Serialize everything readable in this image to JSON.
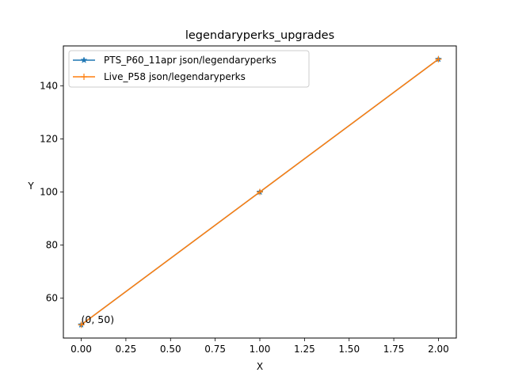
{
  "chart_data": {
    "type": "line",
    "title": "legendaryperks_upgrades",
    "xlabel": "X",
    "ylabel": "Y",
    "x": [
      0,
      1,
      2
    ],
    "xlim": [
      -0.1,
      2.1
    ],
    "ylim": [
      45,
      155
    ],
    "x_ticks": [
      0.0,
      0.25,
      0.5,
      0.75,
      1.0,
      1.25,
      1.5,
      1.75,
      2.0
    ],
    "x_tick_labels": [
      "0.00",
      "0.25",
      "0.50",
      "0.75",
      "1.00",
      "1.25",
      "1.50",
      "1.75",
      "2.00"
    ],
    "y_ticks": [
      60,
      80,
      100,
      120,
      140
    ],
    "y_tick_labels": [
      "60",
      "80",
      "100",
      "120",
      "140"
    ],
    "grid": false,
    "legend_position": "top-left",
    "series": [
      {
        "name": "PTS_P60_11apr json/legendaryperks",
        "values": [
          50,
          100,
          150
        ],
        "color": "#1f77b4",
        "marker": "star"
      },
      {
        "name": "Live_P58 json/legendaryperks",
        "values": [
          50,
          100,
          150
        ],
        "color": "#ff7f0e",
        "marker": "plus"
      }
    ],
    "annotations": [
      {
        "text": "(0, 50)",
        "x": 0,
        "y": 50
      }
    ]
  }
}
